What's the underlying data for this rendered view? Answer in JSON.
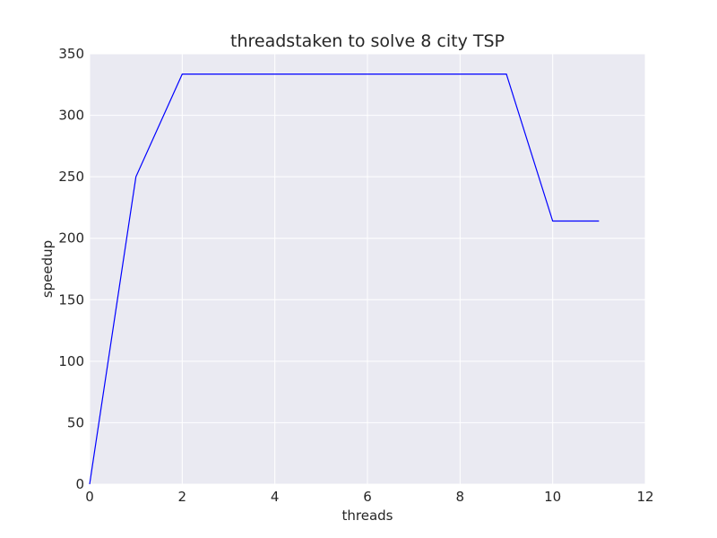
{
  "chart_data": {
    "type": "line",
    "title": "threadstaken to solve 8 city TSP",
    "xlabel": "threads",
    "ylabel": "speedup",
    "xlim": [
      0,
      12
    ],
    "ylim": [
      0,
      350
    ],
    "xticks": [
      "0",
      "2",
      "4",
      "6",
      "8",
      "10",
      "12"
    ],
    "yticks": [
      "0",
      "50",
      "100",
      "150",
      "200",
      "250",
      "300",
      "350"
    ],
    "grid": true,
    "series": [
      {
        "color": "#0000ff",
        "x": [
          0,
          1,
          2,
          3,
          4,
          5,
          6,
          7,
          8,
          9,
          10,
          11
        ],
        "y": [
          0,
          250,
          333.5,
          333.5,
          333.5,
          333.5,
          333.5,
          333.5,
          333.5,
          333.5,
          214,
          214
        ]
      }
    ]
  }
}
